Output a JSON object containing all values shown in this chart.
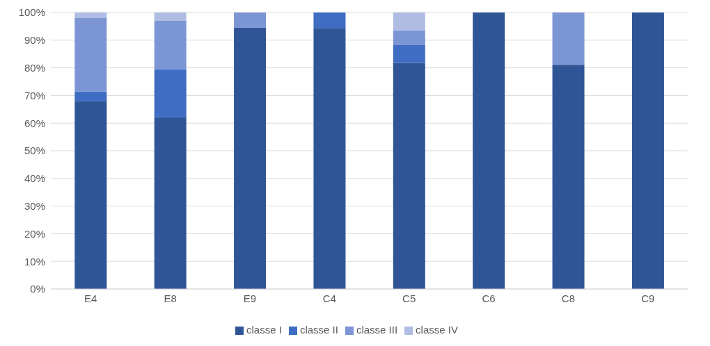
{
  "chart_data": {
    "type": "bar",
    "stacked": true,
    "categories": [
      "E4",
      "E8",
      "E9",
      "C4",
      "C5",
      "C6",
      "C8",
      "C9"
    ],
    "series": [
      {
        "name": "classe I",
        "color": "#2f5597",
        "values": [
          68,
          62.1,
          94.6,
          94.4,
          81.8,
          100,
          81.1,
          100
        ]
      },
      {
        "name": "classe II",
        "color": "#3e6dc3",
        "values": [
          3.4,
          17.4,
          0,
          5.6,
          6.4,
          0,
          0,
          0
        ]
      },
      {
        "name": "classe III",
        "color": "#7c95d5",
        "values": [
          26.6,
          17.5,
          5.4,
          0,
          5.4,
          0,
          18.9,
          0
        ]
      },
      {
        "name": "classe IV",
        "color": "#b0bde3",
        "values": [
          2,
          3,
          0,
          0,
          6.4,
          0,
          0,
          0
        ]
      }
    ],
    "ylim": [
      0,
      100
    ],
    "yticks": [
      {
        "value": 0,
        "label": "0%"
      },
      {
        "value": 10,
        "label": "10%"
      },
      {
        "value": 20,
        "label": "20%"
      },
      {
        "value": 30,
        "label": "30%"
      },
      {
        "value": 40,
        "label": "40%"
      },
      {
        "value": 50,
        "label": "50%"
      },
      {
        "value": 60,
        "label": "60%"
      },
      {
        "value": 70,
        "label": "70%"
      },
      {
        "value": 80,
        "label": "80%"
      },
      {
        "value": 90,
        "label": "90%"
      },
      {
        "value": 100,
        "label": "100%"
      }
    ],
    "grid": "y",
    "legend": "bottom"
  }
}
